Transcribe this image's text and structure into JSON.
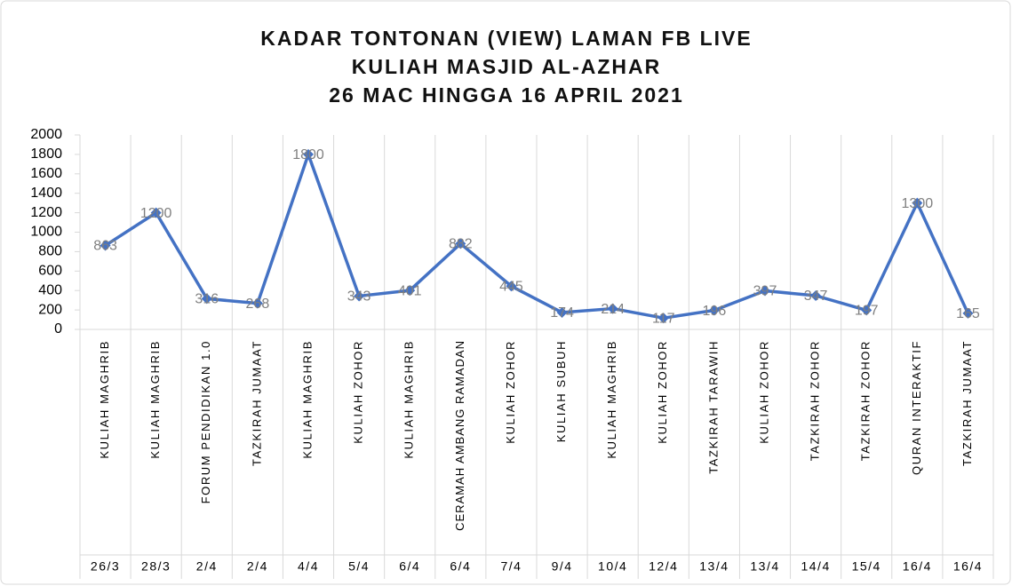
{
  "chart_data": {
    "type": "line",
    "title": [
      "KADAR TONTONAN (VIEW) LAMAN FB LIVE",
      "KULIAH MASJID AL-AZHAR",
      "26 MAC HINGGA 16 APRIL 2021"
    ],
    "categories": [
      "KULIAH MAGHRIB",
      "KULIAH MAGHRIB",
      "FORUM PENDIDIKAN 1.0",
      "TAZKIRAH JUMAAT",
      "KULIAH MAGHRIB",
      "KULIAH ZOHOR",
      "KULIAH MAGHRIB",
      "CERAMAH AMBANG RAMADAN",
      "KULIAH ZOHOR",
      "KULIAH SUBUH",
      "KULIAH MAGHRIB",
      "KULIAH ZOHOR",
      "TAZKIRAH TARAWIH",
      "KULIAH ZOHOR",
      "TAZKIRAH ZOHOR",
      "TAZKIRAH ZOHOR",
      "QURAN INTERAKTIF",
      "TAZKIRAH JUMAAT"
    ],
    "category_dates": [
      "26/3",
      "28/3",
      "2/4",
      "2/4",
      "4/4",
      "5/4",
      "6/4",
      "6/4",
      "7/4",
      "9/4",
      "10/4",
      "12/4",
      "13/4",
      "13/4",
      "14/4",
      "15/4",
      "16/4",
      "16/4"
    ],
    "series": [
      {
        "name": "View",
        "color": "#4472c4",
        "values": [
          863,
          1200,
          316,
          268,
          1800,
          343,
          401,
          882,
          445,
          174,
          214,
          117,
          196,
          397,
          347,
          197,
          1300,
          165
        ]
      }
    ],
    "ylim": [
      0,
      2000
    ],
    "yticks": [
      0,
      200,
      400,
      600,
      800,
      1000,
      1200,
      1400,
      1600,
      1800,
      2000
    ],
    "data_labels": true
  }
}
